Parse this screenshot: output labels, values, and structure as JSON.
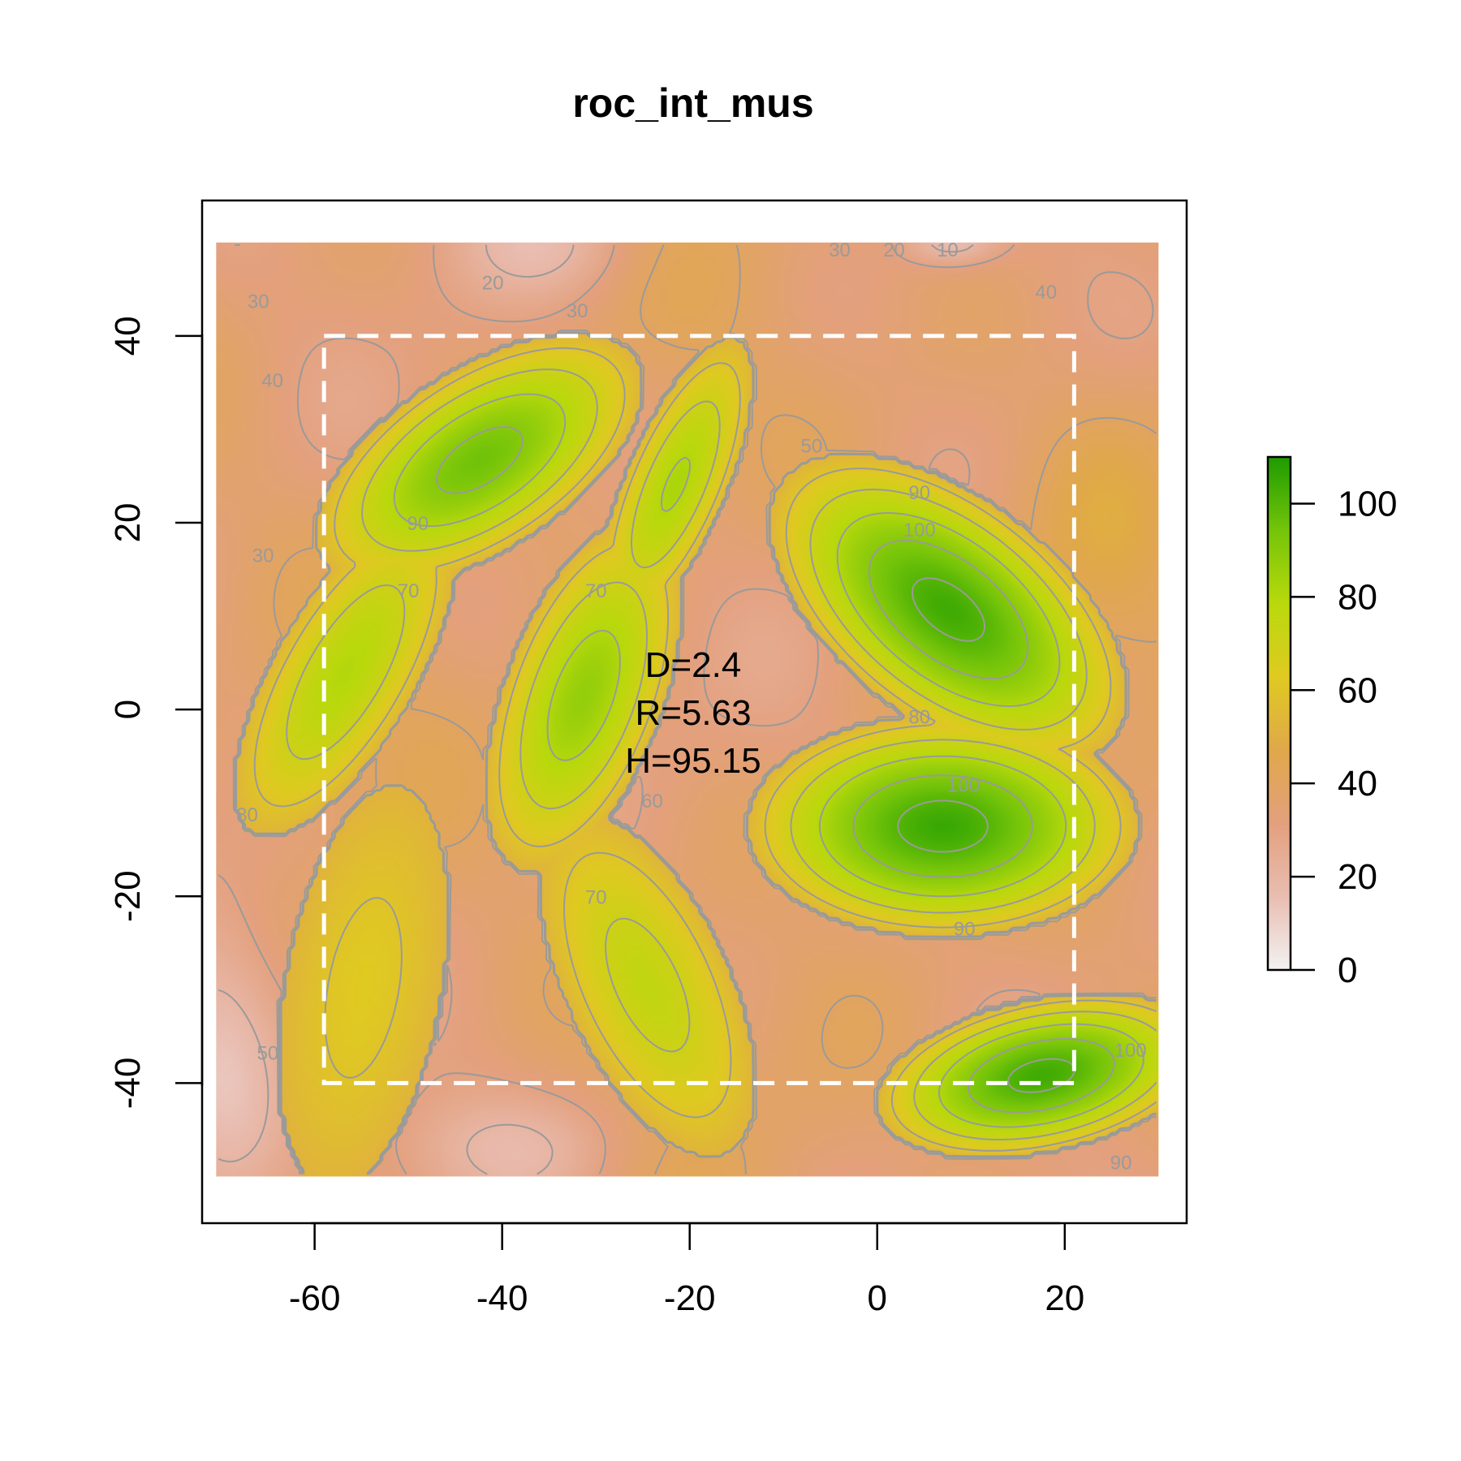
{
  "chart_data": {
    "type": "heatmap",
    "title": "roc_int_mus",
    "xlim": [
      -72,
      33
    ],
    "ylim": [
      -55,
      54.5
    ],
    "x_ticks": [
      -60,
      -40,
      -20,
      0,
      20
    ],
    "y_ticks": [
      -40,
      -20,
      0,
      20,
      40
    ],
    "x_tick_labels": [
      "-60",
      "-40",
      "-20",
      "0",
      "20"
    ],
    "y_tick_labels": [
      "-40",
      "-20",
      "0",
      "20",
      "40"
    ],
    "raster_extent": {
      "x": [
        -70.5,
        30
      ],
      "y": [
        -50,
        50
      ]
    },
    "dashed_rectangle": {
      "x": [
        -59,
        21
      ],
      "y": [
        -40,
        40
      ],
      "color": "#ffffff"
    },
    "colorbar": {
      "range": [
        0,
        110
      ],
      "ticks": [
        0,
        20,
        40,
        60,
        80,
        100
      ],
      "tick_labels": [
        "0",
        "20",
        "40",
        "60",
        "80",
        "100"
      ],
      "colors": [
        "#f2f2f2",
        "#e9bdb1",
        "#e3a07d",
        "#e0a84a",
        "#dfca21",
        "#b9d90c",
        "#74c40a",
        "#1e9b00"
      ]
    },
    "annotations": [
      "D=2.4",
      "R=5.63",
      "H=95.15"
    ],
    "background_value": 35,
    "contour_levels": [
      10,
      20,
      30,
      40,
      50,
      60,
      70,
      80,
      90,
      100
    ],
    "contour_color": "#9a9a9a",
    "contour_labels": [
      {
        "text": "30",
        "x": -4,
        "y": 48.5
      },
      {
        "text": "20",
        "x": 1.8,
        "y": 48.5
      },
      {
        "text": "10",
        "x": 7.5,
        "y": 48.5
      },
      {
        "text": "20",
        "x": -41,
        "y": 45
      },
      {
        "text": "30",
        "x": -66,
        "y": 43
      },
      {
        "text": "40",
        "x": 18,
        "y": 44
      },
      {
        "text": "30",
        "x": -32,
        "y": 42
      },
      {
        "text": "40",
        "x": -64.5,
        "y": 34.5
      },
      {
        "text": "90",
        "x": -49,
        "y": 19.2
      },
      {
        "text": "30",
        "x": -65.5,
        "y": 15.8
      },
      {
        "text": "70",
        "x": -50,
        "y": 12
      },
      {
        "text": "70",
        "x": -30,
        "y": 12
      },
      {
        "text": "50",
        "x": -7,
        "y": 27.5
      },
      {
        "text": "90",
        "x": 4.5,
        "y": 22.5
      },
      {
        "text": "100",
        "x": 4.5,
        "y": 18.5
      },
      {
        "text": "80",
        "x": 4.5,
        "y": -1.5
      },
      {
        "text": "60",
        "x": -24,
        "y": -10.5
      },
      {
        "text": "100",
        "x": 9.2,
        "y": -8.8
      },
      {
        "text": "70",
        "x": -30,
        "y": -20.8
      },
      {
        "text": "90",
        "x": 9.3,
        "y": -24.2
      },
      {
        "text": "100",
        "x": 27,
        "y": -37.2
      },
      {
        "text": "90",
        "x": 26,
        "y": -49.2
      },
      {
        "text": "50",
        "x": -65,
        "y": -37.5
      },
      {
        "text": "80",
        "x": -67.2,
        "y": -12
      }
    ],
    "blobs": [
      {
        "label": "top-left leaf",
        "cx": -42.4,
        "cy": 26.7,
        "a": 20,
        "b": 9.8,
        "angle_deg": 33,
        "peak": 95
      },
      {
        "label": "top-middle leaf",
        "cx": -21.5,
        "cy": 24.1,
        "a": 17,
        "b": 5.5,
        "angle_deg": 67,
        "peak": 82
      },
      {
        "label": "upper-right leaf",
        "cx": 7.6,
        "cy": 10.7,
        "a": 22.5,
        "b": 12,
        "angle_deg": -38,
        "peak": 104
      },
      {
        "label": "left leaf",
        "cx": -56.7,
        "cy": 4,
        "a": 20,
        "b": 7.6,
        "angle_deg": 60,
        "peak": 80
      },
      {
        "label": "center leaf",
        "cx": -31.3,
        "cy": 1.5,
        "a": 20,
        "b": 8.6,
        "angle_deg": 70,
        "peak": 87
      },
      {
        "label": "right leaf",
        "cx": 7,
        "cy": -12.5,
        "a": 21,
        "b": 12,
        "angle_deg": 0,
        "peak": 105
      },
      {
        "label": "bottom-left leaf",
        "cx": -54.8,
        "cy": -29.8,
        "a": 22,
        "b": 8.5,
        "angle_deg": 80,
        "peak": 63
      },
      {
        "label": "bottom-middle leaf",
        "cx": -24.5,
        "cy": -29.5,
        "a": 20,
        "b": 8.8,
        "angle_deg": 115,
        "peak": 75
      },
      {
        "label": "bottom-right leaf",
        "cx": 17.5,
        "cy": -39.2,
        "a": 18,
        "b": 8.3,
        "angle_deg": 12,
        "peak": 104
      }
    ],
    "grid": false,
    "legend": "right"
  }
}
